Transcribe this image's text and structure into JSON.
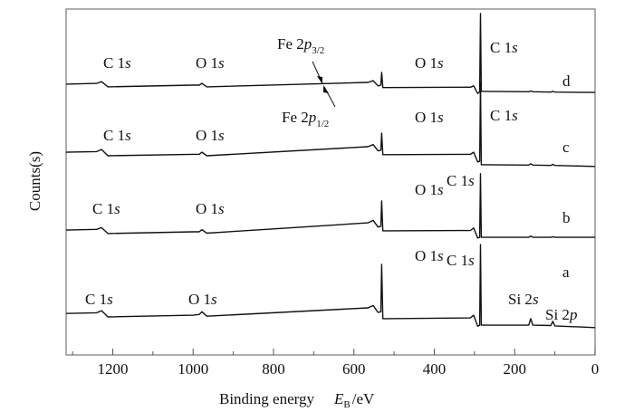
{
  "chart_data": {
    "type": "line",
    "xlabel": {
      "prefix": "Binding energy",
      "symbol": "E",
      "symbol_sub": "B",
      "unit": "/eV"
    },
    "ylabel": "Counts(s)",
    "xlim": [
      1316,
      0
    ],
    "ylim": [
      0,
      100
    ],
    "x_reversed": true,
    "grid": false,
    "x_ticks": [
      "1200",
      "1000",
      "800",
      "600",
      "400",
      "200",
      "0"
    ],
    "x_tick_values": [
      1200,
      1000,
      800,
      600,
      400,
      200,
      0
    ],
    "x_minor_tick_values": [
      1300,
      1100,
      900,
      700,
      500,
      300,
      100
    ],
    "y_ticks": [],
    "line_color": "#111111",
    "x": [
      1316,
      1240,
      1228,
      1212,
      1000,
      985,
      978,
      966,
      565,
      552,
      540,
      533,
      531,
      528,
      520,
      310,
      302,
      292,
      287,
      285,
      283,
      275,
      165,
      160,
      155,
      110,
      105,
      100,
      0
    ],
    "series": [
      {
        "name": "d",
        "values": [
          78.3,
          78.5,
          79.0,
          77.5,
          78.0,
          78.0,
          78.5,
          77.5,
          78.8,
          79.3,
          77.8,
          78.0,
          81.7,
          77.3,
          77.3,
          77.4,
          77.8,
          75.6,
          76.0,
          98.7,
          76.2,
          76.2,
          76.1,
          76.3,
          76.1,
          76.0,
          76.2,
          76.0,
          75.9
        ]
      },
      {
        "name": "c",
        "values": [
          58.6,
          58.8,
          59.4,
          57.6,
          58.0,
          58.0,
          58.6,
          57.6,
          60.2,
          60.8,
          59.0,
          59.2,
          64.1,
          57.9,
          57.9,
          58.0,
          58.6,
          55.8,
          56.0,
          79.0,
          55.0,
          55.0,
          54.9,
          55.3,
          54.9,
          54.8,
          55.1,
          54.8,
          54.5
        ]
      },
      {
        "name": "b",
        "values": [
          36.1,
          36.3,
          36.8,
          35.1,
          35.6,
          35.6,
          36.2,
          35.2,
          38.2,
          38.9,
          37.0,
          37.2,
          44.5,
          35.9,
          35.9,
          36.0,
          36.7,
          33.8,
          34.0,
          52.4,
          34.0,
          34.0,
          34.0,
          34.4,
          34.0,
          34.0,
          34.2,
          34.0,
          34.0
        ]
      },
      {
        "name": "a",
        "values": [
          12.0,
          12.2,
          12.8,
          11.0,
          11.5,
          11.7,
          12.5,
          11.2,
          13.6,
          14.3,
          12.3,
          12.5,
          26.2,
          10.5,
          10.5,
          10.7,
          11.5,
          8.3,
          8.6,
          31.9,
          8.6,
          8.6,
          8.6,
          10.5,
          8.6,
          8.5,
          9.7,
          8.4,
          7.9
        ]
      }
    ],
    "annotations": {
      "d": [
        {
          "prefix": "C 1",
          "orb": "s"
        },
        {
          "prefix": "O 1",
          "orb": "s"
        },
        {
          "prefix": "Fe 2",
          "orb": "p",
          "sub": "3/2"
        },
        {
          "prefix": "O 1",
          "orb": "s"
        },
        {
          "prefix": "C 1",
          "orb": "s"
        }
      ],
      "c": [
        {
          "prefix": "C 1",
          "orb": "s"
        },
        {
          "prefix": "O 1",
          "orb": "s"
        },
        {
          "prefix": "Fe 2",
          "orb": "p",
          "sub": "1/2"
        },
        {
          "prefix": "O 1",
          "orb": "s"
        },
        {
          "prefix": "C 1",
          "orb": "s"
        }
      ],
      "b": [
        {
          "prefix": "C 1",
          "orb": "s"
        },
        {
          "prefix": "O 1",
          "orb": "s"
        },
        {
          "prefix": "O 1",
          "orb": "s"
        },
        {
          "prefix": "C 1",
          "orb": "s"
        }
      ],
      "a": [
        {
          "prefix": "C 1",
          "orb": "s"
        },
        {
          "prefix": "O 1",
          "orb": "s"
        },
        {
          "prefix": "O 1",
          "orb": "s"
        },
        {
          "prefix": "C 1",
          "orb": "s"
        },
        {
          "prefix": "Si 2",
          "orb": "s"
        },
        {
          "prefix": "Si 2",
          "orb": "p"
        }
      ]
    }
  }
}
